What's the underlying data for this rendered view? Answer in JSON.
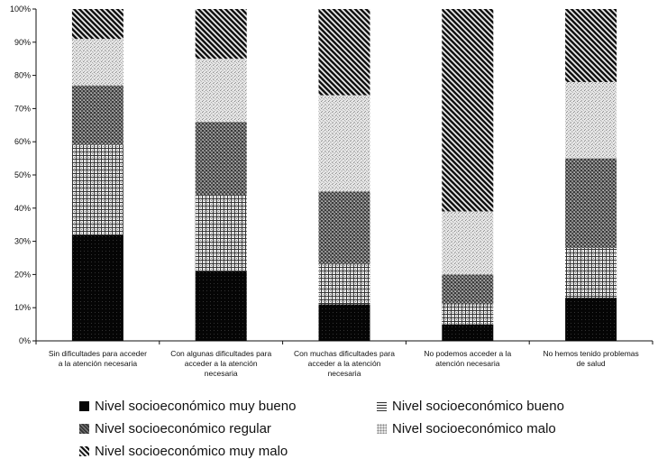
{
  "chart_data": {
    "type": "bar",
    "stacked": true,
    "percent": true,
    "title": "",
    "xlabel": "",
    "ylabel": "",
    "ylim": [
      0,
      100
    ],
    "yticks": [
      "0%",
      "10%",
      "20%",
      "30%",
      "40%",
      "50%",
      "60%",
      "70%",
      "80%",
      "90%",
      "100%"
    ],
    "categories": [
      [
        "Sin dificultades para acceder",
        "a la atención necesaria"
      ],
      [
        "Con algunas dificultades para",
        "acceder a la atención",
        "necesaria"
      ],
      [
        "Con muchas dificultades para",
        "acceder a la atención",
        "necesaria"
      ],
      [
        "No podemos acceder a la",
        "atención necesaria"
      ],
      [
        "No hemos tenido problemas",
        "de salud"
      ]
    ],
    "series": [
      {
        "name": "Nivel socioeconómico muy bueno",
        "color": "#0a0a0a",
        "pattern": "solid",
        "values": [
          32,
          21,
          11,
          5,
          13
        ]
      },
      {
        "name": "Nivel socioeconómico bueno",
        "color": "#555555",
        "pattern": "grid",
        "values": [
          27,
          23,
          12,
          6,
          15
        ]
      },
      {
        "name": "Nivel socioeconómico regular",
        "color": "#6a6a6a",
        "pattern": "dense",
        "values": [
          18,
          22,
          22,
          9,
          27
        ]
      },
      {
        "name": "Nivel socioeconómico malo",
        "color": "#9a9a9a",
        "pattern": "dots",
        "values": [
          14,
          19,
          29,
          19,
          23
        ]
      },
      {
        "name": "Nivel socioeconómico muy malo",
        "color": "#1a1a1a",
        "pattern": "diag",
        "values": [
          9,
          15,
          26,
          61,
          22
        ]
      }
    ],
    "legend_position": "bottom",
    "grid": false
  }
}
